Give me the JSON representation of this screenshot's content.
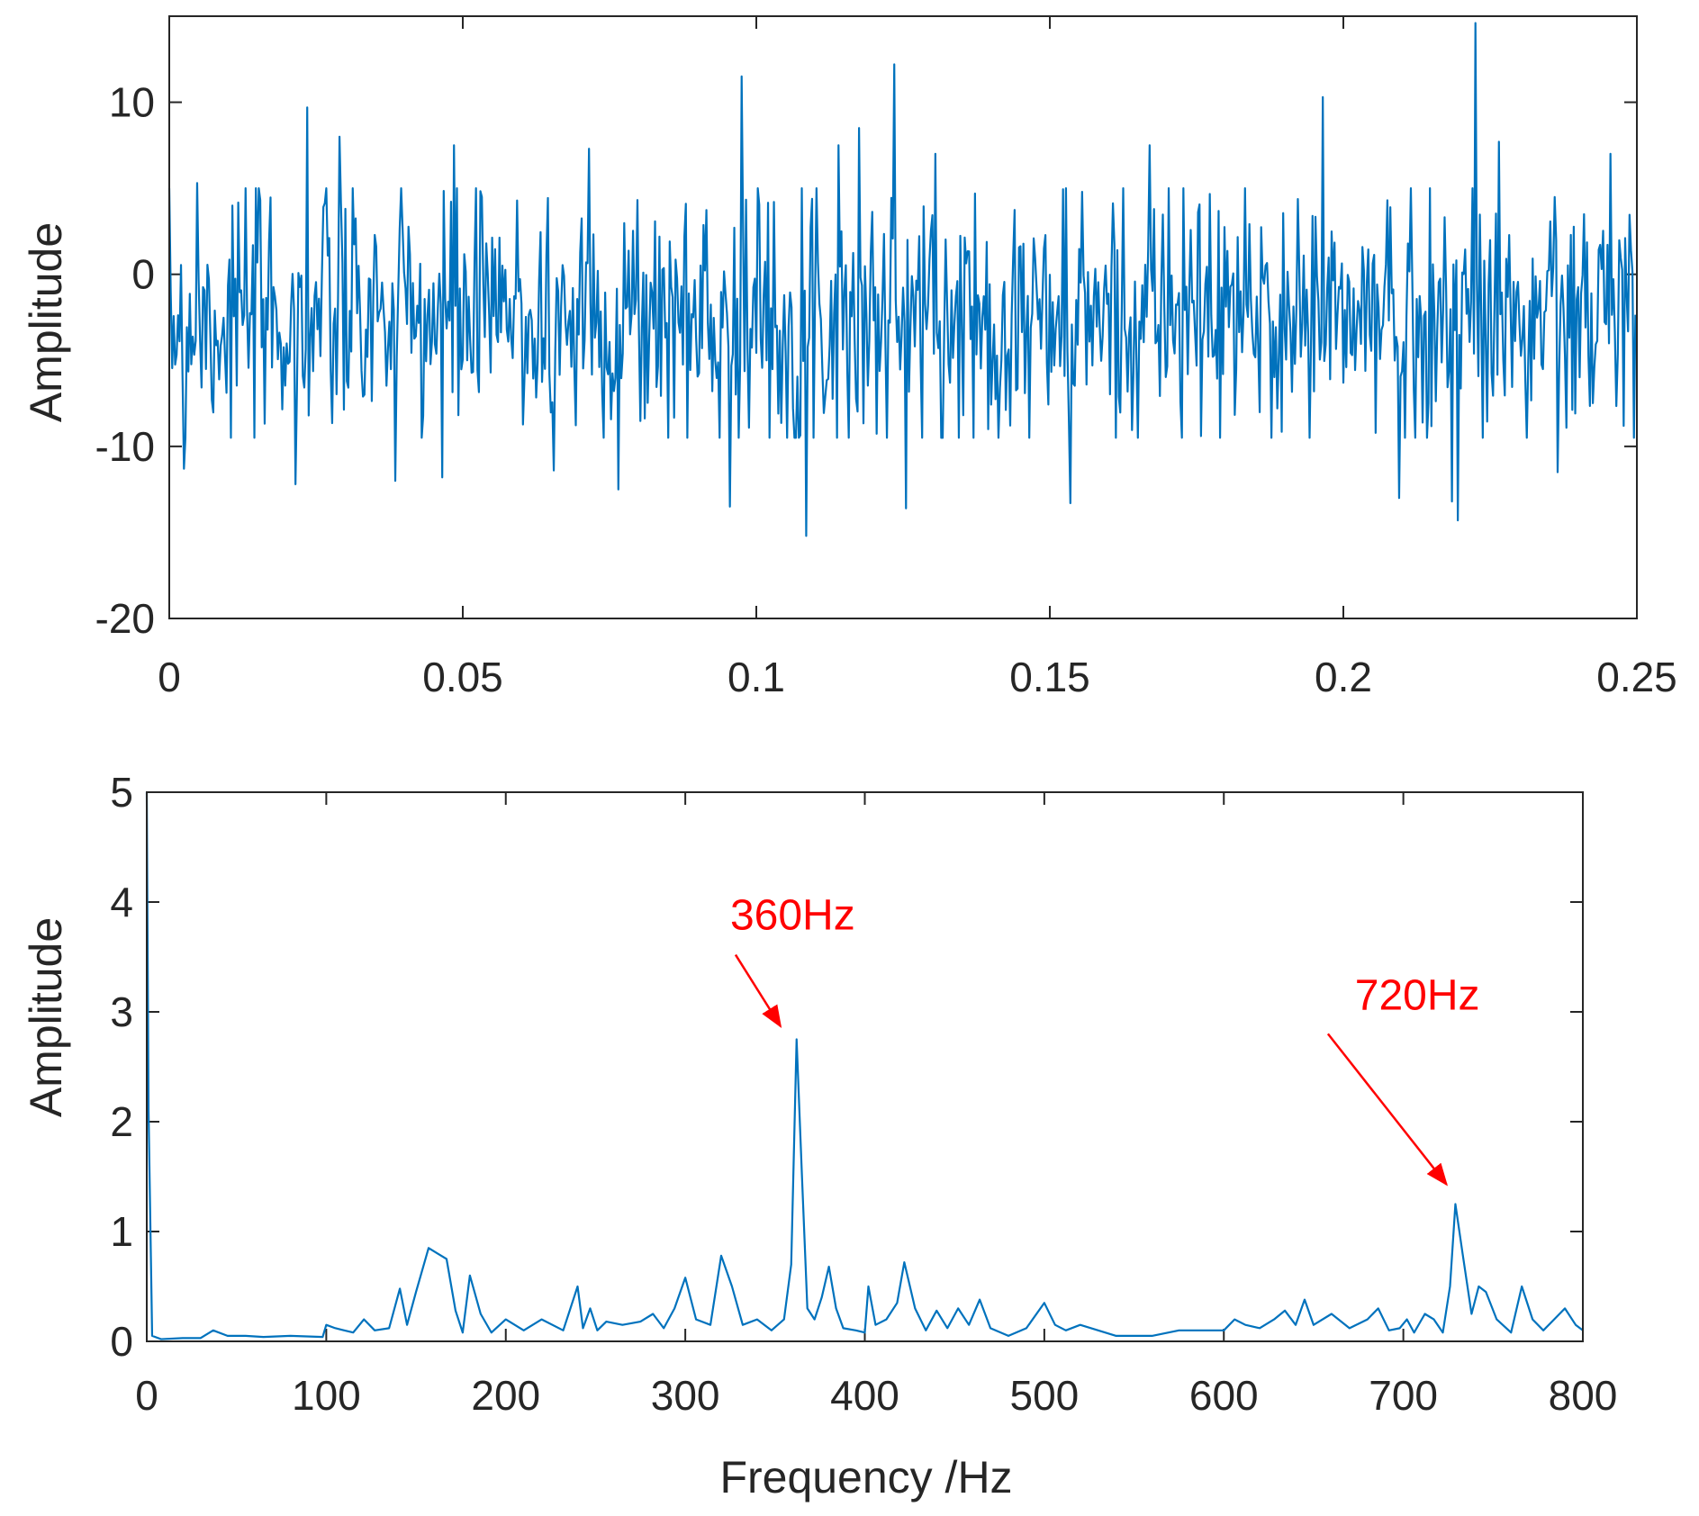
{
  "colors": {
    "series": "#0072BD",
    "annotation": "#FF0000",
    "axis": "#262626"
  },
  "chart_data": [
    {
      "type": "line",
      "name": "time-domain",
      "title": "",
      "xlabel": "",
      "ylabel": "Amplitude",
      "xlim": [
        0,
        0.25
      ],
      "ylim": [
        -20,
        15
      ],
      "xticks": [
        0,
        0.05,
        0.1,
        0.15,
        0.2,
        0.25
      ],
      "xtick_labels": [
        "0",
        "0.05",
        "0.1",
        "0.15",
        "0.2",
        "0.25"
      ],
      "yticks": [
        -20,
        -10,
        0,
        10
      ],
      "ytick_labels": [
        "-20",
        "-10",
        "0",
        "10"
      ],
      "series": [
        {
          "name": "signal",
          "x_start": 0,
          "x_step": 0.00025,
          "n_points": 1000,
          "baseline": -2.5,
          "noise_sd": 3.8,
          "seed": 7,
          "peaks": [
            {
              "x": 0.0047,
              "y": 5.3
            },
            {
              "x": 0.0235,
              "y": 9.7
            },
            {
              "x": 0.029,
              "y": 8.0
            },
            {
              "x": 0.0385,
              "y": 7.5
            },
            {
              "x": 0.0485,
              "y": 7.5
            },
            {
              "x": 0.0715,
              "y": 7.3
            },
            {
              "x": 0.0975,
              "y": 11.5
            },
            {
              "x": 0.114,
              "y": 7.5
            },
            {
              "x": 0.1175,
              "y": 8.5
            },
            {
              "x": 0.1235,
              "y": 12.2
            },
            {
              "x": 0.1305,
              "y": 7.0
            },
            {
              "x": 0.167,
              "y": 7.5
            },
            {
              "x": 0.1965,
              "y": 10.3
            },
            {
              "x": 0.2185,
              "y": 10.2
            },
            {
              "x": 0.2225,
              "y": 14.6
            },
            {
              "x": 0.2265,
              "y": 7.7
            },
            {
              "x": 0.2455,
              "y": 7.0
            },
            {
              "x": 0.0025,
              "y": -11.3
            },
            {
              "x": 0.0215,
              "y": -12.2
            },
            {
              "x": 0.0385,
              "y": -12.0
            },
            {
              "x": 0.0465,
              "y": -11.8
            },
            {
              "x": 0.0655,
              "y": -11.4
            },
            {
              "x": 0.0765,
              "y": -12.5
            },
            {
              "x": 0.0955,
              "y": -13.5
            },
            {
              "x": 0.1085,
              "y": -15.2
            },
            {
              "x": 0.1255,
              "y": -13.6
            },
            {
              "x": 0.1535,
              "y": -13.3
            },
            {
              "x": 0.2095,
              "y": -13.0
            },
            {
              "x": 0.2185,
              "y": -13.2
            },
            {
              "x": 0.2195,
              "y": -14.3
            },
            {
              "x": 0.2365,
              "y": -11.5
            }
          ]
        }
      ]
    },
    {
      "type": "line",
      "name": "spectrum",
      "title": "",
      "xlabel": "Frequency /Hz",
      "ylabel": "Amplitude",
      "xlim": [
        0,
        800
      ],
      "ylim": [
        0,
        5
      ],
      "xticks": [
        0,
        100,
        200,
        300,
        400,
        500,
        600,
        700,
        800
      ],
      "xtick_labels": [
        "0",
        "100",
        "200",
        "300",
        "400",
        "500",
        "600",
        "700",
        "800"
      ],
      "yticks": [
        0,
        1,
        2,
        3,
        4,
        5
      ],
      "ytick_labels": [
        "0",
        "1",
        "2",
        "3",
        "4",
        "5"
      ],
      "series": [
        {
          "name": "spectrum",
          "x": [
            0,
            1,
            3,
            8,
            20,
            30,
            37,
            45,
            55,
            65,
            80,
            98,
            100,
            105,
            115,
            121,
            127,
            135,
            141,
            145,
            150,
            157,
            162,
            167,
            172,
            176,
            180,
            186,
            192,
            200,
            210,
            220,
            232,
            240,
            243,
            247,
            251,
            256,
            265,
            275,
            282,
            288,
            294,
            300,
            306,
            314,
            320,
            326,
            332,
            340,
            348,
            355,
            359,
            362,
            365,
            368,
            372,
            376,
            380,
            384,
            388,
            395,
            400,
            402,
            406,
            412,
            418,
            422,
            428,
            434,
            440,
            446,
            452,
            458,
            464,
            470,
            480,
            490,
            500,
            506,
            512,
            520,
            530,
            540,
            550,
            560,
            575,
            590,
            600,
            606,
            612,
            620,
            628,
            634,
            640,
            645,
            650,
            660,
            670,
            680,
            686,
            692,
            698,
            702,
            706,
            712,
            717,
            722,
            726,
            729,
            733,
            738,
            742,
            746,
            752,
            760,
            766,
            772,
            778,
            784,
            790,
            796,
            800
          ],
          "y": [
            5.0,
            2.1,
            0.05,
            0.02,
            0.03,
            0.03,
            0.1,
            0.05,
            0.05,
            0.04,
            0.05,
            0.04,
            0.15,
            0.12,
            0.08,
            0.2,
            0.1,
            0.12,
            0.48,
            0.15,
            0.45,
            0.85,
            0.8,
            0.75,
            0.28,
            0.08,
            0.6,
            0.25,
            0.08,
            0.2,
            0.1,
            0.2,
            0.1,
            0.5,
            0.12,
            0.3,
            0.1,
            0.18,
            0.15,
            0.18,
            0.25,
            0.12,
            0.3,
            0.58,
            0.2,
            0.15,
            0.78,
            0.5,
            0.15,
            0.2,
            0.1,
            0.2,
            0.7,
            2.75,
            1.5,
            0.3,
            0.2,
            0.4,
            0.68,
            0.3,
            0.12,
            0.1,
            0.08,
            0.5,
            0.15,
            0.2,
            0.35,
            0.72,
            0.3,
            0.1,
            0.28,
            0.12,
            0.3,
            0.15,
            0.38,
            0.12,
            0.05,
            0.12,
            0.35,
            0.15,
            0.1,
            0.15,
            0.1,
            0.05,
            0.05,
            0.05,
            0.1,
            0.1,
            0.1,
            0.2,
            0.15,
            0.12,
            0.2,
            0.28,
            0.15,
            0.38,
            0.15,
            0.25,
            0.12,
            0.2,
            0.3,
            0.1,
            0.12,
            0.2,
            0.08,
            0.25,
            0.2,
            0.08,
            0.5,
            1.25,
            0.8,
            0.25,
            0.5,
            0.45,
            0.2,
            0.08,
            0.5,
            0.2,
            0.1,
            0.2,
            0.3,
            0.15,
            0.1
          ]
        }
      ],
      "annotations": [
        {
          "text": "360Hz",
          "text_x": 325,
          "text_y": 3.75,
          "arrow_from": [
            328,
            3.52
          ],
          "arrow_to": [
            353,
            2.87
          ]
        },
        {
          "text": "720Hz",
          "text_x": 673,
          "text_y": 3.02,
          "arrow_from": [
            658,
            2.8
          ],
          "arrow_to": [
            724,
            1.43
          ]
        }
      ]
    }
  ]
}
